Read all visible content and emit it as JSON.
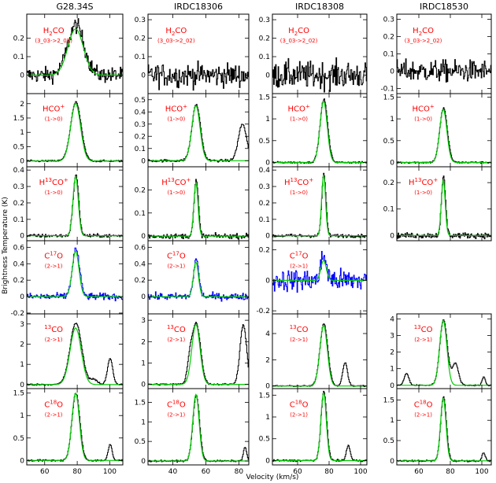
{
  "chart_data": {
    "type": "line",
    "title": "",
    "xlabel": "Velocity (km/s)",
    "ylabel": "Brightness Temperature (K)",
    "colors": {
      "observed": "#000000",
      "observed_c17o": "#0000ff",
      "fit": "#00cc00",
      "labels": "#ff0000"
    },
    "sources": [
      "G28.34S",
      "IRDC18306",
      "IRDC18308",
      "IRDC18530"
    ],
    "columns": [
      {
        "xlim": [
          49,
          108
        ],
        "xticks": [
          60,
          80,
          100
        ],
        "vlsr": 79
      },
      {
        "xlim": [
          25,
          86
        ],
        "xticks": [
          40,
          60,
          80
        ],
        "vlsr": 54
      },
      {
        "xlim": [
          44,
          104
        ],
        "xticks": [
          60,
          80,
          100
        ],
        "vlsr": 76.5
      },
      {
        "xlim": [
          46,
          106
        ],
        "xticks": [
          60,
          80,
          100
        ],
        "vlsr": 75.5
      }
    ],
    "molecules": [
      {
        "name": "H2CO",
        "transition": "(3_03->2_02)"
      },
      {
        "name": "HCO+",
        "transition": "(1->0)"
      },
      {
        "name": "H13CO+",
        "transition": "(1->0)"
      },
      {
        "name": "C17O",
        "transition": "(2->1)"
      },
      {
        "name": "13CO",
        "transition": "(2->1)"
      },
      {
        "name": "C18O",
        "transition": "(2->1)"
      }
    ],
    "panels": [
      {
        "row": 0,
        "col": 0,
        "ylim": [
          -0.1,
          0.33
        ],
        "yticks": [
          "0.2",
          "0.1",
          "0"
        ],
        "peak": 0.27,
        "width": 5.0,
        "noise": 0.04,
        "fit_peak": 0.25
      },
      {
        "row": 0,
        "col": 1,
        "ylim": [
          -0.1,
          0.33
        ],
        "yticks": [
          "0.3",
          "0.2",
          "0.1",
          "0"
        ],
        "peak": 0.0,
        "width": 4.0,
        "noise": 0.06
      },
      {
        "row": 0,
        "col": 2,
        "ylim": [
          -0.1,
          0.33
        ],
        "yticks": [
          "0.3",
          "0.2",
          "0.1",
          "0"
        ],
        "peak": 0.0,
        "width": 4.0,
        "noise": 0.07
      },
      {
        "row": 0,
        "col": 3,
        "ylim": [
          -0.13,
          0.33
        ],
        "yticks": [
          "0.3",
          "0.2",
          "0.1",
          "0",
          "-0.1"
        ],
        "peak": 0.0,
        "width": 4.0,
        "noise": 0.06
      },
      {
        "row": 1,
        "col": 0,
        "ylim": [
          -0.2,
          2.35
        ],
        "yticks": [
          "2",
          "1.5",
          "1",
          "0.5",
          "0"
        ],
        "peak": 2.05,
        "width": 3.2,
        "noise": 0.03,
        "fit_peak": 2.0
      },
      {
        "row": 1,
        "col": 1,
        "ylim": [
          -0.05,
          0.55
        ],
        "yticks": [
          "0.5",
          "0.4",
          "0.3",
          "0.2",
          "0.1",
          "0"
        ],
        "peak": 0.46,
        "width": 2.6,
        "noise": 0.01,
        "fit_peak": 0.45,
        "extra": [
          {
            "v": 82,
            "t": 0.3,
            "w": 2.5
          }
        ]
      },
      {
        "row": 1,
        "col": 2,
        "ylim": [
          -0.1,
          1.58
        ],
        "yticks": [
          "1.5",
          "1",
          "0.5",
          "0"
        ],
        "peak": 1.45,
        "width": 2.4,
        "noise": 0.02,
        "fit_peak": 1.4
      },
      {
        "row": 1,
        "col": 3,
        "ylim": [
          -0.1,
          1.58
        ],
        "yticks": [
          "1.5",
          "1",
          "0.5",
          "0"
        ],
        "peak": 1.25,
        "width": 2.4,
        "noise": 0.02,
        "fit_peak": 1.22
      },
      {
        "row": 2,
        "col": 0,
        "ylim": [
          -0.03,
          0.42
        ],
        "yticks": [
          "0.4",
          "0.3",
          "0.2",
          "0.1",
          "0"
        ],
        "peak": 0.37,
        "width": 1.7,
        "noise": 0.01,
        "fit_peak": 0.36
      },
      {
        "row": 2,
        "col": 1,
        "ylim": [
          -0.02,
          0.3
        ],
        "yticks": [
          "0.2",
          "0.1",
          "0"
        ],
        "peak": 0.24,
        "width": 1.3,
        "noise": 0.01,
        "fit_peak": 0.23
      },
      {
        "row": 2,
        "col": 2,
        "ylim": [
          -0.03,
          0.42
        ],
        "yticks": [
          "0.4",
          "0.3",
          "0.2",
          "0.1",
          "0"
        ],
        "peak": 0.38,
        "width": 1.3,
        "noise": 0.01,
        "fit_peak": 0.37
      },
      {
        "row": 2,
        "col": 3,
        "ylim": [
          -0.02,
          0.26
        ],
        "yticks": [
          "0.2",
          "0.1",
          "0"
        ],
        "peak": 0.22,
        "width": 1.3,
        "noise": 0.01,
        "fit_peak": 0.21
      },
      {
        "row": 3,
        "col": 0,
        "ylim": [
          -0.21,
          0.68
        ],
        "yticks": [
          "0.6",
          "0.4",
          "0.2",
          "0",
          "-0.2"
        ],
        "peak": 0.58,
        "width": 2.2,
        "noise": 0.04,
        "fit_peak": 0.55,
        "blue": true
      },
      {
        "row": 3,
        "col": 1,
        "ylim": [
          -0.21,
          0.68
        ],
        "yticks": [
          "0.6",
          "0.4",
          "0.2",
          "0"
        ],
        "peak": 0.45,
        "width": 1.6,
        "noise": 0.04,
        "fit_peak": 0.42,
        "blue": true
      },
      {
        "row": 3,
        "col": 2,
        "ylim": [
          -0.22,
          0.26
        ],
        "yticks": [
          "0.2",
          "0",
          "-0.2"
        ],
        "peak": 0.16,
        "width": 1.8,
        "noise": 0.07,
        "fit_peak": 0.13,
        "blue": true
      },
      {
        "row": 4,
        "col": 0,
        "ylim": [
          -0.2,
          3.5
        ],
        "yticks": [
          "3",
          "2",
          "1",
          "0"
        ],
        "peak": 3.05,
        "width": 3.6,
        "noise": 0.04,
        "fit_peak": 2.8,
        "extra": [
          {
            "v": 100,
            "t": 1.3,
            "w": 1.6
          },
          {
            "v": 90,
            "t": 0.25,
            "w": 2.0
          }
        ]
      },
      {
        "row": 4,
        "col": 1,
        "ylim": [
          -0.2,
          3.3
        ],
        "yticks": [
          "3",
          "2",
          "1",
          "0"
        ],
        "peak": 2.85,
        "width": 2.6,
        "noise": 0.04,
        "fit_peak": 2.8,
        "extra": [
          {
            "v": 82.5,
            "t": 2.8,
            "w": 2.0
          },
          {
            "v": 50,
            "t": 0.8,
            "w": 1.5
          }
        ]
      },
      {
        "row": 4,
        "col": 2,
        "ylim": [
          -0.2,
          5.5
        ],
        "yticks": [
          "4",
          "2",
          "0"
        ],
        "peak": 4.75,
        "width": 2.5,
        "noise": 0.05,
        "fit_peak": 4.6,
        "extra": [
          {
            "v": 90,
            "t": 1.8,
            "w": 1.5
          }
        ]
      },
      {
        "row": 4,
        "col": 3,
        "ylim": [
          -0.2,
          4.3
        ],
        "yticks": [
          "4",
          "3",
          "2",
          "1",
          "0"
        ],
        "peak": 3.95,
        "width": 2.4,
        "noise": 0.04,
        "fit_peak": 3.9,
        "extra": [
          {
            "v": 83,
            "t": 1.3,
            "w": 2.0
          },
          {
            "v": 52,
            "t": 0.7,
            "w": 1.5
          },
          {
            "v": 101,
            "t": 0.5,
            "w": 1.0
          }
        ]
      },
      {
        "row": 5,
        "col": 0,
        "ylim": [
          -0.1,
          1.6
        ],
        "yticks": [
          "1.5",
          "1",
          "0.5",
          "0"
        ],
        "peak": 1.5,
        "width": 2.4,
        "noise": 0.02,
        "fit_peak": 1.5,
        "extra": [
          {
            "v": 100,
            "t": 0.35,
            "w": 1.2
          }
        ]
      },
      {
        "row": 5,
        "col": 1,
        "ylim": [
          -0.1,
          1.85
        ],
        "yticks": [
          "1.5",
          "1",
          "0.5",
          "0"
        ],
        "peak": 1.68,
        "width": 2.0,
        "noise": 0.02,
        "fit_peak": 1.7,
        "extra": [
          {
            "v": 83.5,
            "t": 0.35,
            "w": 1.0
          }
        ]
      },
      {
        "row": 5,
        "col": 2,
        "ylim": [
          -0.1,
          1.65
        ],
        "yticks": [
          "1.5",
          "1",
          "0.5",
          "0"
        ],
        "peak": 1.58,
        "width": 1.8,
        "noise": 0.02,
        "fit_peak": 1.55,
        "extra": [
          {
            "v": 92,
            "t": 0.35,
            "w": 1.2
          }
        ]
      },
      {
        "row": 5,
        "col": 3,
        "ylim": [
          -0.1,
          1.78
        ],
        "yticks": [
          "1.5",
          "1",
          "0.5",
          "0"
        ],
        "peak": 1.58,
        "width": 1.8,
        "noise": 0.02,
        "fit_peak": 1.55,
        "extra": [
          {
            "v": 101,
            "t": 0.2,
            "w": 1.0
          }
        ]
      }
    ]
  }
}
